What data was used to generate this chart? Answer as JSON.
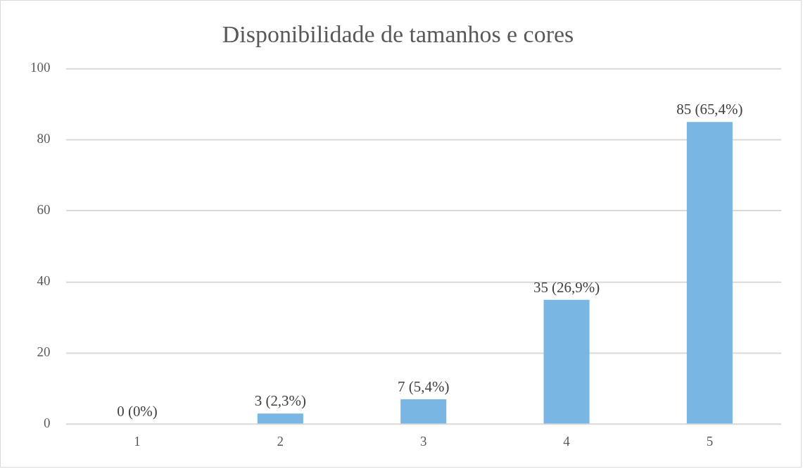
{
  "chart_data": {
    "type": "bar",
    "title": "Disponibilidade de tamanhos e cores",
    "categories": [
      "1",
      "2",
      "3",
      "4",
      "5"
    ],
    "values": [
      0,
      3,
      7,
      35,
      85
    ],
    "value_labels": [
      "0 (0%)",
      "3 (2,3%)",
      "7 (5,4%)",
      "35 (26,9%)",
      "85 (65,4%)"
    ],
    "color": "#7ab6e3",
    "ylim": [
      0,
      100
    ],
    "yticks": [
      0,
      20,
      40,
      60,
      80,
      100
    ],
    "grid": "y",
    "legend": false
  }
}
